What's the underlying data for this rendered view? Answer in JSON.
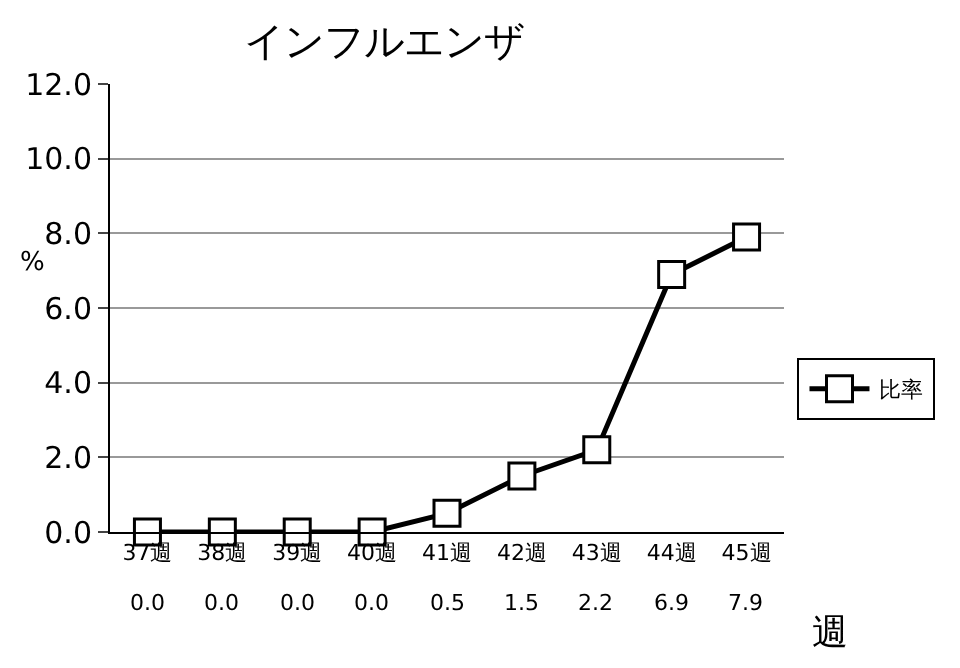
{
  "chart_data": {
    "type": "line",
    "title": "インフルエンザ",
    "xlabel": "週",
    "ylabel": "%",
    "categories": [
      "37週",
      "38週",
      "39週",
      "40週",
      "41週",
      "42週",
      "43週",
      "44週",
      "45週"
    ],
    "series": [
      {
        "name": "比率",
        "color": "#000000",
        "values": [
          0.0,
          0.0,
          0.0,
          0.0,
          0.5,
          1.5,
          2.2,
          6.9,
          7.9
        ],
        "value_labels": [
          "0.0",
          "0.0",
          "0.0",
          "0.0",
          "0.5",
          "1.5",
          "2.2",
          "6.9",
          "7.9"
        ]
      }
    ],
    "ylim": [
      0,
      12
    ],
    "yticks": [
      {
        "value": 0,
        "label": "0.0"
      },
      {
        "value": 2,
        "label": "2.0"
      },
      {
        "value": 4,
        "label": "4.0"
      },
      {
        "value": 6,
        "label": "6.0"
      },
      {
        "value": 8,
        "label": "8.0"
      },
      {
        "value": 10,
        "label": "10.0"
      },
      {
        "value": 12,
        "label": "12.0"
      }
    ],
    "grid": "y",
    "legend": "right",
    "marker": "square",
    "line_style": "solid"
  }
}
